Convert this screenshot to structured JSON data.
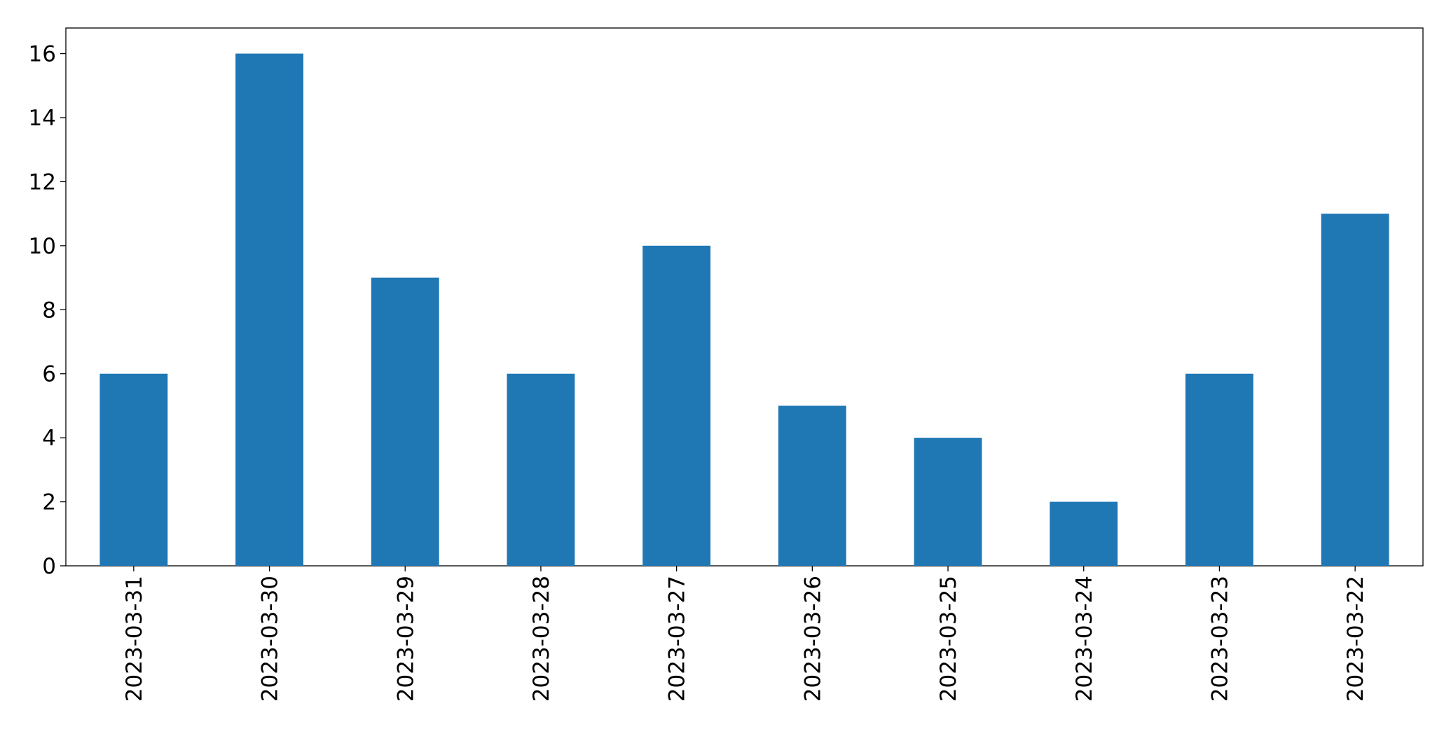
{
  "chart_data": {
    "type": "bar",
    "categories": [
      "2023-03-31",
      "2023-03-30",
      "2023-03-29",
      "2023-03-28",
      "2023-03-27",
      "2023-03-26",
      "2023-03-25",
      "2023-03-24",
      "2023-03-23",
      "2023-03-22"
    ],
    "values": [
      6,
      16,
      9,
      6,
      10,
      5,
      4,
      2,
      6,
      11
    ],
    "color": "#1f77b4",
    "ylim": [
      0,
      16.8
    ],
    "yticks": [
      0,
      2,
      4,
      6,
      8,
      10,
      12,
      14,
      16
    ],
    "grid": false
  }
}
